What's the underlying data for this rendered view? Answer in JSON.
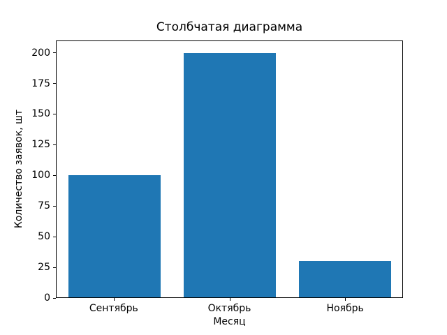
{
  "chart_data": {
    "type": "bar",
    "title": "Столбчатая диаграмма",
    "xlabel": "Месяц",
    "ylabel": "Количество заявок, шт",
    "categories": [
      "Сентябрь",
      "Октябрь",
      "Ноябрь"
    ],
    "values": [
      100,
      200,
      30
    ],
    "ylim": [
      0,
      210
    ],
    "yticks": [
      0,
      25,
      50,
      75,
      100,
      125,
      150,
      175,
      200
    ],
    "bar_color": "#1f77b4",
    "background_color": "#ffffff",
    "grid": false,
    "legend": "none"
  }
}
